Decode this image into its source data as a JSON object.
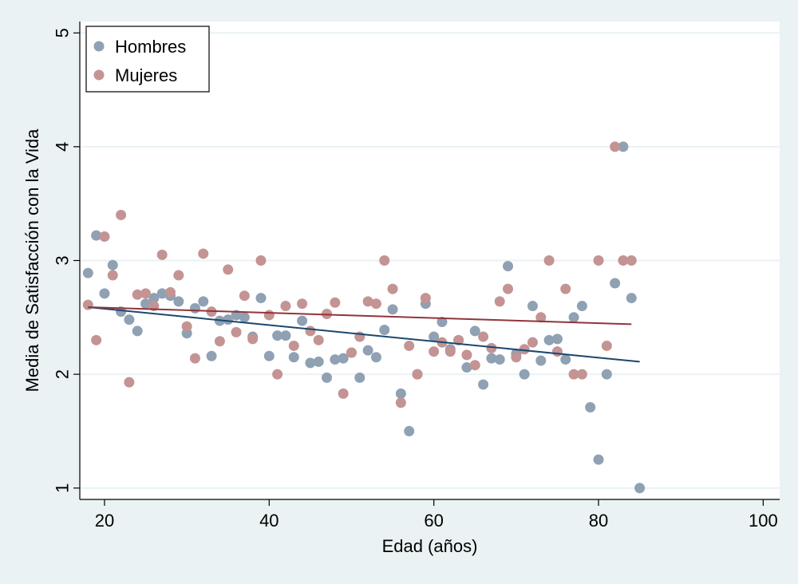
{
  "chart_data": {
    "type": "scatter",
    "title": "",
    "xlabel": "Edad (años)",
    "ylabel": "Media de Satisfacción con la Vida",
    "xlim": [
      17,
      102
    ],
    "ylim": [
      0.9,
      5.1
    ],
    "xticks": [
      20,
      40,
      60,
      80,
      100
    ],
    "yticks": [
      1,
      2,
      3,
      4,
      5
    ],
    "grid": true,
    "legend_position": "top-left",
    "colors": {
      "background": "#eaf2f3",
      "plot_area": "#ffffff",
      "grid": "#eaf2f3",
      "hombres_markers": "#8fa1b3",
      "mujeres_markers": "#c39493",
      "hombres_fit": "#1a476f",
      "mujeres_fit": "#90353b"
    },
    "series": [
      {
        "name": "Hombres",
        "points": [
          [
            18,
            2.89
          ],
          [
            19,
            3.22
          ],
          [
            20,
            2.71
          ],
          [
            21,
            2.96
          ],
          [
            22,
            2.55
          ],
          [
            23,
            2.48
          ],
          [
            24,
            2.38
          ],
          [
            25,
            2.62
          ],
          [
            26,
            2.67
          ],
          [
            27,
            2.71
          ],
          [
            28,
            2.69
          ],
          [
            29,
            2.64
          ],
          [
            30,
            2.36
          ],
          [
            31,
            2.58
          ],
          [
            32,
            2.64
          ],
          [
            33,
            2.16
          ],
          [
            34,
            2.47
          ],
          [
            35,
            2.48
          ],
          [
            36,
            2.52
          ],
          [
            37,
            2.5
          ],
          [
            38,
            2.33
          ],
          [
            39,
            2.67
          ],
          [
            40,
            2.16
          ],
          [
            41,
            2.34
          ],
          [
            42,
            2.34
          ],
          [
            43,
            2.15
          ],
          [
            44,
            2.47
          ],
          [
            45,
            2.1
          ],
          [
            46,
            2.11
          ],
          [
            47,
            1.97
          ],
          [
            48,
            2.13
          ],
          [
            49,
            2.14
          ],
          [
            50,
            2.19
          ],
          [
            51,
            1.97
          ],
          [
            52,
            2.21
          ],
          [
            53,
            2.15
          ],
          [
            54,
            2.39
          ],
          [
            55,
            2.57
          ],
          [
            56,
            1.83
          ],
          [
            57,
            1.5
          ],
          [
            58,
            2.0
          ],
          [
            59,
            2.62
          ],
          [
            60,
            2.33
          ],
          [
            61,
            2.46
          ],
          [
            62,
            2.22
          ],
          [
            63,
            2.3
          ],
          [
            64,
            2.06
          ],
          [
            65,
            2.38
          ],
          [
            66,
            1.91
          ],
          [
            67,
            2.14
          ],
          [
            68,
            2.13
          ],
          [
            69,
            2.95
          ],
          [
            70,
            2.18
          ],
          [
            71,
            2.0
          ],
          [
            72,
            2.6
          ],
          [
            73,
            2.12
          ],
          [
            74,
            2.3
          ],
          [
            75,
            2.31
          ],
          [
            76,
            2.13
          ],
          [
            77,
            2.5
          ],
          [
            78,
            2.6
          ],
          [
            79,
            1.71
          ],
          [
            80,
            1.25
          ],
          [
            81,
            2.0
          ],
          [
            82,
            2.8
          ],
          [
            83,
            4.0
          ],
          [
            84,
            2.67
          ],
          [
            85,
            1.0
          ]
        ],
        "fit": {
          "x": [
            18,
            85
          ],
          "y": [
            2.59,
            2.11
          ]
        }
      },
      {
        "name": "Mujeres",
        "points": [
          [
            18,
            2.61
          ],
          [
            19,
            2.3
          ],
          [
            20,
            3.21
          ],
          [
            21,
            2.87
          ],
          [
            22,
            3.4
          ],
          [
            23,
            1.93
          ],
          [
            24,
            2.7
          ],
          [
            25,
            2.71
          ],
          [
            26,
            2.6
          ],
          [
            27,
            3.05
          ],
          [
            28,
            2.72
          ],
          [
            29,
            2.87
          ],
          [
            30,
            2.42
          ],
          [
            31,
            2.14
          ],
          [
            32,
            3.06
          ],
          [
            33,
            2.55
          ],
          [
            34,
            2.29
          ],
          [
            35,
            2.92
          ],
          [
            36,
            2.37
          ],
          [
            37,
            2.69
          ],
          [
            38,
            2.31
          ],
          [
            39,
            3.0
          ],
          [
            40,
            2.52
          ],
          [
            41,
            2.0
          ],
          [
            42,
            2.6
          ],
          [
            43,
            2.25
          ],
          [
            44,
            2.62
          ],
          [
            45,
            2.38
          ],
          [
            46,
            2.3
          ],
          [
            47,
            2.53
          ],
          [
            48,
            2.63
          ],
          [
            49,
            1.83
          ],
          [
            50,
            2.19
          ],
          [
            51,
            2.33
          ],
          [
            52,
            2.64
          ],
          [
            53,
            2.62
          ],
          [
            54,
            3.0
          ],
          [
            55,
            2.75
          ],
          [
            56,
            1.75
          ],
          [
            57,
            2.25
          ],
          [
            58,
            2.0
          ],
          [
            59,
            2.67
          ],
          [
            60,
            2.2
          ],
          [
            61,
            2.28
          ],
          [
            62,
            2.2
          ],
          [
            63,
            2.3
          ],
          [
            64,
            2.17
          ],
          [
            65,
            2.08
          ],
          [
            66,
            2.33
          ],
          [
            67,
            2.23
          ],
          [
            68,
            2.64
          ],
          [
            69,
            2.75
          ],
          [
            70,
            2.15
          ],
          [
            71,
            2.22
          ],
          [
            72,
            2.28
          ],
          [
            73,
            2.5
          ],
          [
            74,
            3.0
          ],
          [
            75,
            2.2
          ],
          [
            76,
            2.75
          ],
          [
            77,
            2.0
          ],
          [
            78,
            2.0
          ],
          [
            80,
            3.0
          ],
          [
            81,
            2.25
          ],
          [
            82,
            4.0
          ],
          [
            83,
            3.0
          ],
          [
            84,
            3.0
          ]
        ],
        "fit": {
          "x": [
            18,
            84
          ],
          "y": [
            2.59,
            2.44
          ]
        }
      }
    ]
  }
}
